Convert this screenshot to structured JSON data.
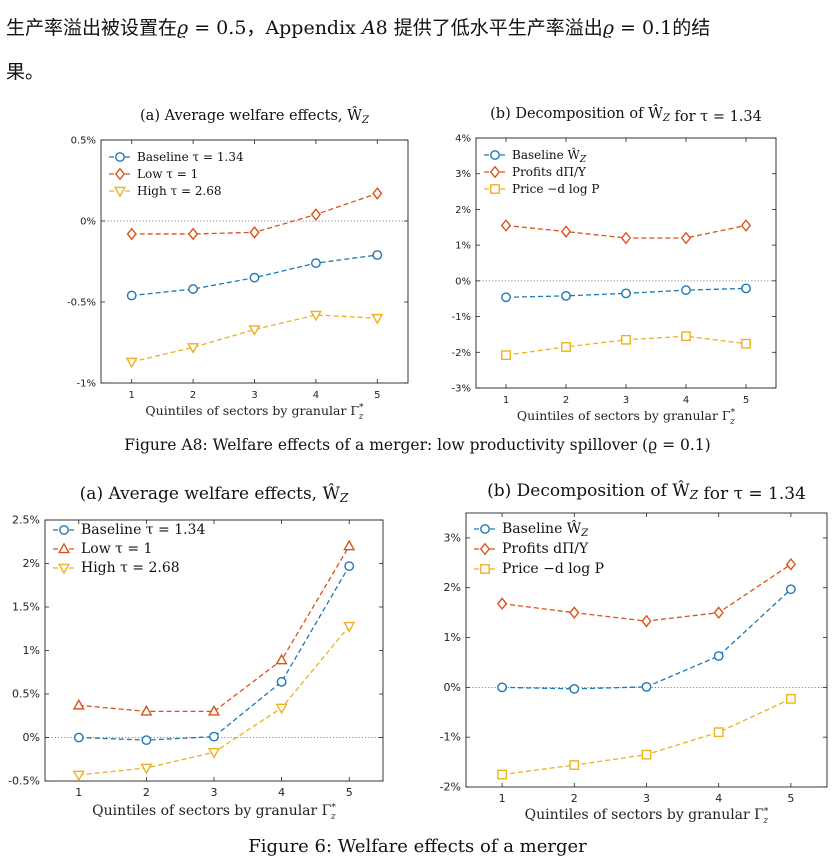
{
  "intro": {
    "line1_a": "生产率溢出被设置在",
    "line1_b": "ϱ",
    "line1_c": " = 0.5，Appendix ",
    "line1_d": "A",
    "line1_e": "8 提供了低水平生产率溢出",
    "line1_f": "ϱ",
    "line1_g": " = 0.1的结",
    "line2": "果。"
  },
  "caption_a8": "Figure A8: Welfare effects of a merger: low productivity spillover (ϱ = 0.1)",
  "caption_6": "Figure 6: Welfare effects of a merger",
  "colors": {
    "blue": "#1f77b4",
    "orange": "#d95319",
    "yellow": "#edb120"
  },
  "chart_data": [
    {
      "id": "a8a",
      "type": "line",
      "title": "(a) Average welfare effects, Ŵ_Z",
      "xlabel": "Quintiles of sectors by granular Γ*z",
      "x": [
        1,
        2,
        3,
        4,
        5
      ],
      "ylim": [
        -1,
        0.5
      ],
      "yticks": [
        -1,
        -0.5,
        0,
        0.5
      ],
      "yticklabels": [
        "-1%",
        "-0.5%",
        "0%",
        "0.5%"
      ],
      "legend": "top-left",
      "series": [
        {
          "name": "Baseline τ = 1.34",
          "marker": "circle",
          "color": "#1f77b4",
          "values": [
            -0.46,
            -0.42,
            -0.35,
            -0.26,
            -0.21
          ]
        },
        {
          "name": "Low τ = 1",
          "marker": "diamond",
          "color": "#d95319",
          "values": [
            -0.08,
            -0.08,
            -0.07,
            0.04,
            0.17
          ]
        },
        {
          "name": "High τ = 2.68",
          "marker": "triangle-down",
          "color": "#edb120",
          "values": [
            -0.87,
            -0.78,
            -0.67,
            -0.58,
            -0.6
          ]
        }
      ]
    },
    {
      "id": "a8b",
      "type": "line",
      "title": "(b) Decomposition of Ŵ_Z for τ = 1.34",
      "xlabel": "Quintiles of sectors by granular Γ*z",
      "x": [
        1,
        2,
        3,
        4,
        5
      ],
      "ylim": [
        -3,
        4
      ],
      "yticks": [
        -3,
        -2,
        -1,
        0,
        1,
        2,
        3,
        4
      ],
      "yticklabels": [
        "-3%",
        "-2%",
        "-1%",
        "0%",
        "1%",
        "2%",
        "3%",
        "4%"
      ],
      "legend": "top-left",
      "series": [
        {
          "name": "Baseline Ŵ_Z",
          "marker": "circle",
          "color": "#1f77b4",
          "values": [
            -0.46,
            -0.42,
            -0.35,
            -0.26,
            -0.21
          ]
        },
        {
          "name": "Profits dΠ/Y",
          "marker": "diamond",
          "color": "#d95319",
          "values": [
            1.55,
            1.38,
            1.2,
            1.2,
            1.55
          ]
        },
        {
          "name": "Price −d log P",
          "marker": "square",
          "color": "#edb120",
          "values": [
            -2.08,
            -1.85,
            -1.65,
            -1.55,
            -1.76
          ]
        }
      ]
    },
    {
      "id": "f6a",
      "type": "line",
      "title": "(a) Average welfare effects, Ŵ_Z",
      "xlabel": "Quintiles of sectors by granular Γ*z",
      "x": [
        1,
        2,
        3,
        4,
        5
      ],
      "ylim": [
        -0.5,
        2.5
      ],
      "yticks": [
        -0.5,
        0,
        0.5,
        1,
        1.5,
        2,
        2.5
      ],
      "yticklabels": [
        "-0.5%",
        "0%",
        "0.5%",
        "1%",
        "1.5%",
        "2%",
        "2.5%"
      ],
      "legend": "top-left",
      "series": [
        {
          "name": "Baseline τ = 1.34",
          "marker": "circle",
          "color": "#1f77b4",
          "values": [
            0.0,
            -0.03,
            0.01,
            0.64,
            1.97
          ]
        },
        {
          "name": "Low τ = 1",
          "marker": "triangle-up",
          "color": "#d95319",
          "values": [
            0.37,
            0.3,
            0.3,
            0.89,
            2.2
          ]
        },
        {
          "name": "High τ = 2.68",
          "marker": "triangle-down",
          "color": "#edb120",
          "values": [
            -0.43,
            -0.35,
            -0.17,
            0.34,
            1.28
          ]
        }
      ]
    },
    {
      "id": "f6b",
      "type": "line",
      "title": "(b) Decomposition of Ŵ_Z for τ = 1.34",
      "xlabel": "Quintiles of sectors by granular Γ*z",
      "x": [
        1,
        2,
        3,
        4,
        5
      ],
      "ylim": [
        -2,
        3.5
      ],
      "yticks": [
        -2,
        -1,
        0,
        1,
        2,
        3
      ],
      "yticklabels": [
        "-2%",
        "-1%",
        "0%",
        "1%",
        "2%",
        "3%"
      ],
      "legend": "top-left",
      "series": [
        {
          "name": "Baseline Ŵ_Z",
          "marker": "circle",
          "color": "#1f77b4",
          "values": [
            0.0,
            -0.03,
            0.01,
            0.63,
            1.97
          ]
        },
        {
          "name": "Profits dΠ/Y",
          "marker": "diamond",
          "color": "#d95319",
          "values": [
            1.68,
            1.5,
            1.33,
            1.5,
            2.47
          ]
        },
        {
          "name": "Price −d log P",
          "marker": "square",
          "color": "#edb120",
          "values": [
            -1.75,
            -1.56,
            -1.35,
            -0.9,
            -0.23
          ]
        }
      ]
    }
  ]
}
